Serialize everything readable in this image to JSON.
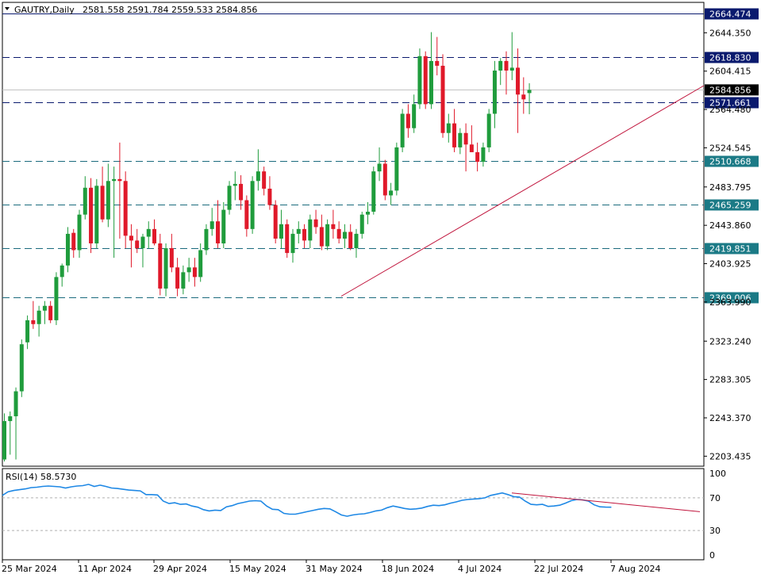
{
  "header": {
    "symbol": "GAUTRY,Daily",
    "ohlc": "2581.558 2591.784 2559.533 2584.856"
  },
  "chart_data": {
    "type": "candlestick",
    "price_axis": {
      "ticks": [
        2644.35,
        2604.415,
        2564.48,
        2524.545,
        2483.795,
        2443.86,
        2403.925,
        2363.99,
        2323.24,
        2283.305,
        2243.37,
        2203.435
      ],
      "range": [
        2193,
        2676
      ]
    },
    "date_axis": {
      "labels": [
        "25 Mar 2024",
        "11 Apr 2024",
        "29 Apr 2024",
        "15 May 2024",
        "31 May 2024",
        "18 Jun 2024",
        "4 Jul 2024",
        "22 Jul 2024",
        "7 Aug 2024"
      ]
    },
    "levels": [
      {
        "value": 2664.474,
        "label": "2664.474",
        "color": "#0a1a6e",
        "style": "solid",
        "badge_color": "#0a1a6e"
      },
      {
        "value": 2618.83,
        "label": "2618.830",
        "color": "#0a1a6e",
        "style": "dashed",
        "badge_color": "#0a1a6e"
      },
      {
        "value": 2571.661,
        "label": "2571.661",
        "color": "#0a1a6e",
        "style": "dashed",
        "badge_color": "#0a1a6e"
      },
      {
        "value": 2510.668,
        "label": "2510.668",
        "color": "#1b6b7d",
        "style": "dashed",
        "badge_color": "#1b7a86"
      },
      {
        "value": 2465.259,
        "label": "2465.259",
        "color": "#1b6b7d",
        "style": "dashed",
        "badge_color": "#1b7a86"
      },
      {
        "value": 2419.851,
        "label": "2419.851",
        "color": "#1b6b7d",
        "style": "dashed",
        "badge_color": "#1b7a86"
      },
      {
        "value": 2369.006,
        "label": "2369.006",
        "color": "#1b6b7d",
        "style": "dashed",
        "badge_color": "#1b7a86"
      }
    ],
    "current_price": {
      "value": 2584.856,
      "label": "2584.856"
    },
    "trendline": {
      "from": [
        0,
        2370
      ],
      "to": [
        66,
        2580
      ],
      "color": "#c0143c"
    },
    "candles_ohlc": [
      [
        2200.0,
        2248.0,
        2198.0,
        2240.0
      ],
      [
        2240.0,
        2250.0,
        2205.0,
        2245.0
      ],
      [
        2245.0,
        2275.0,
        2200.0,
        2271.0
      ],
      [
        2271.0,
        2325.0,
        2265.0,
        2320.0
      ],
      [
        2322.0,
        2350.0,
        2315.0,
        2345.0
      ],
      [
        2345.0,
        2365.0,
        2336.0,
        2341.0
      ],
      [
        2341.0,
        2360.0,
        2328.0,
        2355.0
      ],
      [
        2355.0,
        2365.0,
        2341.0,
        2360.0
      ],
      [
        2360.0,
        2365.0,
        2342.0,
        2345.0
      ],
      [
        2345.0,
        2395.0,
        2340.0,
        2390.0
      ],
      [
        2390.0,
        2404.0,
        2380.0,
        2402.0
      ],
      [
        2402.0,
        2442.0,
        2395.0,
        2435.0
      ],
      [
        2436.0,
        2440.0,
        2410.0,
        2418.0
      ],
      [
        2418.0,
        2460.0,
        2410.0,
        2455.0
      ],
      [
        2455.0,
        2495.0,
        2450.0,
        2483.0
      ],
      [
        2483.0,
        2493.0,
        2415.0,
        2425.0
      ],
      [
        2425.0,
        2492.0,
        2420.0,
        2485.0
      ],
      [
        2485.0,
        2505.0,
        2447.0,
        2450.0
      ],
      [
        2450.0,
        2508.0,
        2442.0,
        2490.0
      ],
      [
        2490.0,
        2505.0,
        2410.0,
        2492.0
      ],
      [
        2492.0,
        2530.0,
        2430.0,
        2490.0
      ],
      [
        2490.0,
        2500.0,
        2420.0,
        2433.0
      ],
      [
        2433.0,
        2445.0,
        2400.0,
        2428.0
      ],
      [
        2428.0,
        2440.0,
        2415.0,
        2420.0
      ],
      [
        2420.0,
        2435.0,
        2400.0,
        2432.0
      ],
      [
        2432.0,
        2448.0,
        2420.0,
        2440.0
      ],
      [
        2440.0,
        2450.0,
        2423.0,
        2425.0
      ],
      [
        2425.0,
        2435.0,
        2371.0,
        2378.0
      ],
      [
        2378.0,
        2425.0,
        2370.0,
        2420.0
      ],
      [
        2420.0,
        2435.0,
        2395.0,
        2400.0
      ],
      [
        2400.0,
        2410.0,
        2370.0,
        2378.0
      ],
      [
        2378.0,
        2402.0,
        2372.0,
        2395.0
      ],
      [
        2395.0,
        2410.0,
        2385.0,
        2400.0
      ],
      [
        2400.0,
        2410.0,
        2380.0,
        2390.0
      ],
      [
        2390.0,
        2425.0,
        2385.0,
        2418.0
      ],
      [
        2418.0,
        2445.0,
        2413.0,
        2440.0
      ],
      [
        2440.0,
        2462.0,
        2433.0,
        2448.0
      ],
      [
        2448.0,
        2470.0,
        2420.0,
        2425.0
      ],
      [
        2425.0,
        2468.0,
        2420.0,
        2460.0
      ],
      [
        2460.0,
        2490.0,
        2455.0,
        2485.0
      ],
      [
        2485.0,
        2500.0,
        2470.0,
        2487.0
      ],
      [
        2487.0,
        2496.0,
        2460.0,
        2470.0
      ],
      [
        2470.0,
        2475.0,
        2432.0,
        2440.0
      ],
      [
        2440.0,
        2495.0,
        2435.0,
        2490.0
      ],
      [
        2490.0,
        2523.0,
        2480.0,
        2500.0
      ],
      [
        2500.0,
        2505.0,
        2475.0,
        2482.0
      ],
      [
        2482.0,
        2495.0,
        2460.0,
        2465.0
      ],
      [
        2465.0,
        2470.0,
        2425.0,
        2430.0
      ],
      [
        2430.0,
        2460.0,
        2420.0,
        2445.0
      ],
      [
        2445.0,
        2450.0,
        2410.0,
        2415.0
      ],
      [
        2415.0,
        2440.0,
        2405.0,
        2435.0
      ],
      [
        2435.0,
        2448.0,
        2425.0,
        2440.0
      ],
      [
        2440.0,
        2445.0,
        2420.0,
        2428.0
      ],
      [
        2428.0,
        2455.0,
        2420.0,
        2450.0
      ],
      [
        2450.0,
        2460.0,
        2435.0,
        2442.0
      ],
      [
        2442.0,
        2455.0,
        2418.0,
        2422.0
      ],
      [
        2422.0,
        2450.0,
        2418.0,
        2445.0
      ],
      [
        2445.0,
        2460.0,
        2430.0,
        2440.0
      ],
      [
        2440.0,
        2448.0,
        2425.0,
        2430.0
      ],
      [
        2430.0,
        2445.0,
        2420.0,
        2437.0
      ],
      [
        2437.0,
        2445.0,
        2418.0,
        2420.0
      ],
      [
        2420.0,
        2440.0,
        2410.0,
        2435.0
      ],
      [
        2435.0,
        2458.0,
        2430.0,
        2455.0
      ],
      [
        2455.0,
        2468.0,
        2445.0,
        2458.0
      ],
      [
        2458.0,
        2505.0,
        2455.0,
        2500.0
      ],
      [
        2500.0,
        2525.0,
        2490.0,
        2508.0
      ],
      [
        2508.0,
        2512.0,
        2470.0,
        2475.0
      ],
      [
        2475.0,
        2488.0,
        2465.0,
        2480.0
      ],
      [
        2480.0,
        2530.0,
        2475.0,
        2525.0
      ],
      [
        2525.0,
        2565.0,
        2520.0,
        2560.0
      ],
      [
        2560.0,
        2570.0,
        2535.0,
        2545.0
      ],
      [
        2545.0,
        2580.0,
        2540.0,
        2570.0
      ],
      [
        2570.0,
        2628.0,
        2565.0,
        2620.0
      ],
      [
        2620.0,
        2625.0,
        2565.0,
        2570.0
      ],
      [
        2570.0,
        2645.0,
        2565.0,
        2615.0
      ],
      [
        2615.0,
        2640.0,
        2600.0,
        2610.0
      ],
      [
        2610.0,
        2622.0,
        2535.0,
        2540.0
      ],
      [
        2540.0,
        2560.0,
        2530.0,
        2550.0
      ],
      [
        2550.0,
        2565.0,
        2520.0,
        2525.0
      ],
      [
        2525.0,
        2545.0,
        2518.0,
        2540.0
      ],
      [
        2540.0,
        2550.0,
        2500.0,
        2528.0
      ],
      [
        2528.0,
        2548.0,
        2520.0,
        2520.0
      ],
      [
        2520.0,
        2530.0,
        2500.0,
        2510.0
      ],
      [
        2510.0,
        2530.0,
        2505.0,
        2525.0
      ],
      [
        2525.0,
        2565.0,
        2520.0,
        2560.0
      ],
      [
        2560.0,
        2615.0,
        2545.0,
        2605.0
      ],
      [
        2605.0,
        2618.0,
        2590.0,
        2615.0
      ],
      [
        2615.0,
        2625.0,
        2580.0,
        2605.0
      ],
      [
        2605.0,
        2645.0,
        2595.0,
        2608.0
      ],
      [
        2608.0,
        2628.0,
        2540.0,
        2580.0
      ],
      [
        2580.0,
        2598.0,
        2560.0,
        2575.0
      ],
      [
        2581.558,
        2591.784,
        2559.533,
        2584.856
      ]
    ],
    "rsi": {
      "label": "RSI(14)",
      "value_label": "58.5730",
      "axis_ticks": [
        100,
        70,
        30,
        0
      ],
      "levels": [
        70,
        30
      ],
      "series_color": "#1e88e5",
      "trendline": {
        "from": [
          76,
          76
        ],
        "to": [
          106,
          53
        ],
        "color": "#c0143c"
      },
      "values": [
        73.0,
        77.5,
        79.0,
        80.0,
        81.0,
        82.5,
        83.0,
        84.0,
        84.5,
        84.0,
        83.5,
        82.0,
        83.5,
        84.5,
        85.0,
        86.5,
        84.0,
        85.5,
        84.0,
        82.0,
        81.5,
        80.5,
        79.5,
        79.0,
        78.5,
        74.0,
        74.0,
        73.5,
        66.0,
        63.0,
        64.0,
        62.0,
        62.5,
        60.0,
        58.5,
        55.5,
        54.0,
        55.0,
        54.5,
        59.0,
        60.5,
        63.0,
        64.5,
        66.0,
        66.5,
        66.0,
        60.0,
        56.0,
        55.5,
        51.0,
        50.0,
        50.0,
        51.5,
        53.0,
        54.5,
        56.0,
        57.0,
        56.5,
        53.0,
        49.0,
        47.5,
        49.0,
        50.0,
        50.5,
        52.0,
        54.0,
        55.0,
        58.0,
        60.0,
        58.5,
        57.0,
        56.0,
        56.5,
        57.5,
        59.5,
        61.0,
        60.5,
        61.5,
        63.5,
        65.0,
        67.0,
        68.0,
        68.5,
        69.0,
        70.0,
        73.0,
        74.5,
        76.0,
        74.0,
        71.5,
        71.0,
        66.0,
        62.0,
        61.5,
        62.0,
        59.5,
        60.0,
        61.0,
        63.5,
        66.5,
        68.0,
        67.5,
        66.0,
        61.5,
        59.0,
        58.6,
        58.57
      ]
    }
  }
}
